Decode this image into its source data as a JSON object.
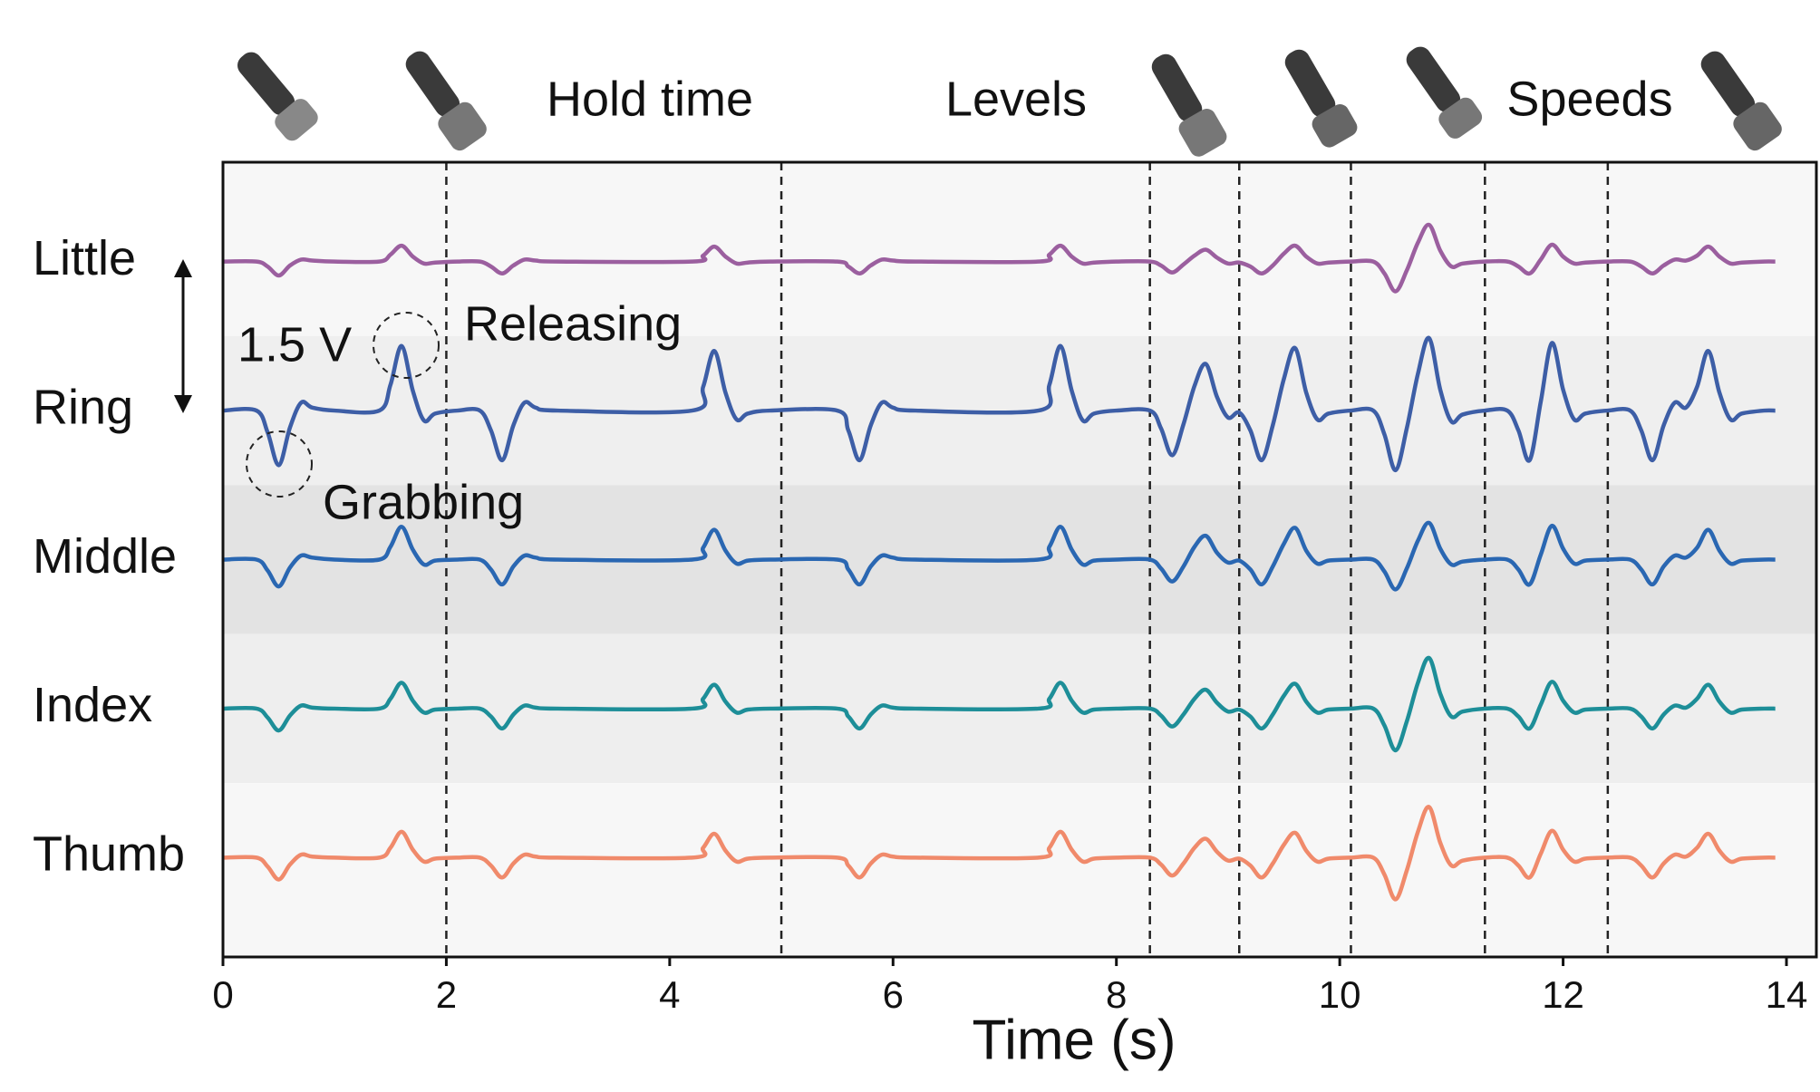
{
  "chart_data": {
    "type": "line",
    "x_label": "Time (s)",
    "x": [
      0,
      0.3,
      0.4,
      0.5,
      0.6,
      0.7,
      0.8,
      1.0,
      1.4,
      1.5,
      1.6,
      1.7,
      1.8,
      1.9,
      2.1,
      2.3,
      2.4,
      2.5,
      2.6,
      2.7,
      2.8,
      3.0,
      4.2,
      4.3,
      4.4,
      4.5,
      4.6,
      4.7,
      4.9,
      5.5,
      5.6,
      5.7,
      5.8,
      5.9,
      6.0,
      6.2,
      7.3,
      7.4,
      7.5,
      7.6,
      7.7,
      7.8,
      8.0,
      8.3,
      8.4,
      8.5,
      8.6,
      8.7,
      8.8,
      8.9,
      9.0,
      9.1,
      9.2,
      9.3,
      9.4,
      9.5,
      9.6,
      9.7,
      9.8,
      9.9,
      10.1,
      10.3,
      10.4,
      10.5,
      10.6,
      10.7,
      10.8,
      10.9,
      11.0,
      11.1,
      11.3,
      11.5,
      11.6,
      11.7,
      11.8,
      11.9,
      12.0,
      12.1,
      12.2,
      12.4,
      12.6,
      12.7,
      12.8,
      12.9,
      13.0,
      13.1,
      13.2,
      13.3,
      13.4,
      13.5,
      13.6,
      13.8,
      13.9
    ],
    "series": [
      {
        "name": "Little",
        "color": "#9b5f9f",
        "values": [
          7,
          7,
          6.95,
          6.86,
          6.96,
          7.02,
          7.01,
          7,
          7,
          7.07,
          7.16,
          7.05,
          6.98,
          6.99,
          7,
          7,
          6.95,
          6.88,
          6.96,
          7.02,
          7.01,
          7,
          7,
          7.06,
          7.15,
          7.05,
          6.98,
          6.99,
          7,
          7,
          6.95,
          6.88,
          6.96,
          7.02,
          7.01,
          7,
          7,
          7.07,
          7.16,
          7.05,
          6.98,
          6.99,
          7,
          7,
          6.96,
          6.89,
          6.97,
          7.06,
          7.12,
          7.04,
          6.98,
          6.99,
          6.95,
          6.88,
          6.96,
          7.08,
          7.16,
          7.05,
          6.98,
          6.99,
          7,
          7,
          6.88,
          6.7,
          6.91,
          7.19,
          7.37,
          7.11,
          6.95,
          6.98,
          7,
          7,
          6.95,
          6.88,
          7.02,
          7.17,
          7.05,
          6.98,
          6.99,
          7,
          7,
          6.95,
          6.88,
          6.96,
          7.02,
          7.01,
          7.06,
          7.15,
          7.05,
          6.98,
          6.99,
          7,
          7
        ]
      },
      {
        "name": "Ring",
        "color": "#3d5ea6",
        "values": [
          5.5,
          5.5,
          5.28,
          4.95,
          5.33,
          5.58,
          5.53,
          5.5,
          5.5,
          5.76,
          6.15,
          5.7,
          5.4,
          5.47,
          5.5,
          5.5,
          5.3,
          5.0,
          5.35,
          5.58,
          5.53,
          5.5,
          5.5,
          5.74,
          6.1,
          5.68,
          5.41,
          5.47,
          5.5,
          5.5,
          5.3,
          5.0,
          5.35,
          5.58,
          5.53,
          5.5,
          5.5,
          5.76,
          6.15,
          5.7,
          5.4,
          5.47,
          5.5,
          5.5,
          5.32,
          5.05,
          5.36,
          5.75,
          5.97,
          5.64,
          5.43,
          5.48,
          5.3,
          5.0,
          5.35,
          5.82,
          6.13,
          5.68,
          5.41,
          5.47,
          5.5,
          5.5,
          5.26,
          4.9,
          5.32,
          5.87,
          6.23,
          5.71,
          5.39,
          5.46,
          5.5,
          5.5,
          5.3,
          5.0,
          5.59,
          6.18,
          5.71,
          5.41,
          5.47,
          5.5,
          5.5,
          5.3,
          5.0,
          5.35,
          5.58,
          5.53,
          5.74,
          6.1,
          5.68,
          5.41,
          5.47,
          5.5,
          5.5
        ]
      },
      {
        "name": "Middle",
        "color": "#2a67b2",
        "values": [
          4,
          4,
          3.89,
          3.73,
          3.92,
          4.04,
          4.02,
          4,
          4,
          4.13,
          4.33,
          4.1,
          3.95,
          3.99,
          4,
          4,
          3.9,
          3.75,
          3.93,
          4.04,
          4.02,
          4,
          4,
          4.12,
          4.3,
          4.09,
          3.96,
          3.99,
          4,
          4,
          3.9,
          3.75,
          3.93,
          4.04,
          4.02,
          4,
          4,
          4.13,
          4.33,
          4.1,
          3.95,
          3.99,
          4,
          4,
          3.91,
          3.78,
          3.93,
          4.13,
          4.24,
          4.07,
          3.97,
          3.99,
          3.9,
          3.75,
          3.93,
          4.16,
          4.32,
          4.09,
          3.96,
          3.99,
          4,
          4,
          3.88,
          3.7,
          3.91,
          4.19,
          4.37,
          4.11,
          3.95,
          3.98,
          4,
          4,
          3.9,
          3.75,
          4.05,
          4.34,
          4.11,
          3.96,
          3.99,
          4,
          4,
          3.9,
          3.75,
          3.93,
          4.04,
          4.02,
          4.12,
          4.3,
          4.09,
          3.96,
          3.99,
          4,
          4
        ]
      },
      {
        "name": "Index",
        "color": "#1d8e98",
        "values": [
          2.5,
          2.5,
          2.41,
          2.28,
          2.43,
          2.53,
          2.51,
          2.5,
          2.5,
          2.6,
          2.76,
          2.58,
          2.46,
          2.49,
          2.5,
          2.5,
          2.42,
          2.3,
          2.44,
          2.53,
          2.51,
          2.5,
          2.5,
          2.6,
          2.74,
          2.57,
          2.46,
          2.49,
          2.5,
          2.5,
          2.42,
          2.3,
          2.44,
          2.53,
          2.51,
          2.5,
          2.5,
          2.6,
          2.76,
          2.58,
          2.46,
          2.49,
          2.5,
          2.5,
          2.43,
          2.32,
          2.44,
          2.6,
          2.69,
          2.56,
          2.47,
          2.49,
          2.42,
          2.3,
          2.44,
          2.63,
          2.75,
          2.57,
          2.46,
          2.49,
          2.5,
          2.5,
          2.33,
          2.08,
          2.37,
          2.76,
          3.01,
          2.65,
          2.42,
          2.47,
          2.5,
          2.5,
          2.42,
          2.3,
          2.54,
          2.77,
          2.58,
          2.46,
          2.49,
          2.5,
          2.5,
          2.42,
          2.3,
          2.44,
          2.53,
          2.51,
          2.6,
          2.74,
          2.57,
          2.46,
          2.49,
          2.5,
          2.5
        ]
      },
      {
        "name": "Thumb",
        "color": "#f08a6b",
        "values": [
          1,
          1,
          0.91,
          0.78,
          0.93,
          1.03,
          1.01,
          1,
          1,
          1.1,
          1.26,
          1.08,
          0.96,
          0.99,
          1,
          1,
          0.92,
          0.8,
          0.94,
          1.03,
          1.01,
          1,
          1,
          1.1,
          1.24,
          1.07,
          0.96,
          0.99,
          1,
          1,
          0.92,
          0.8,
          0.94,
          1.03,
          1.01,
          1,
          1,
          1.1,
          1.26,
          1.08,
          0.96,
          0.99,
          1,
          1,
          0.93,
          0.82,
          0.94,
          1.1,
          1.19,
          1.06,
          0.97,
          0.99,
          0.92,
          0.8,
          0.94,
          1.13,
          1.25,
          1.07,
          0.96,
          0.99,
          1,
          1,
          0.83,
          0.58,
          0.87,
          1.26,
          1.51,
          1.15,
          0.92,
          0.97,
          1,
          1,
          0.92,
          0.8,
          1.04,
          1.27,
          1.08,
          0.96,
          0.99,
          1,
          1,
          0.92,
          0.8,
          0.94,
          1.03,
          1.01,
          1.1,
          1.24,
          1.07,
          0.96,
          0.99,
          1,
          1
        ]
      }
    ],
    "xlim": [
      0,
      14
    ],
    "xticks": [
      0,
      2,
      4,
      6,
      8,
      10,
      12,
      14
    ],
    "ylim": [
      0,
      8
    ],
    "vlines": [
      2,
      5,
      8.3,
      9.1,
      10.1,
      11.3,
      12.4
    ],
    "annotations": [
      "Hold time",
      "Levels",
      "Speeds",
      "1.5 V",
      "Releasing",
      "Grabbing"
    ]
  }
}
